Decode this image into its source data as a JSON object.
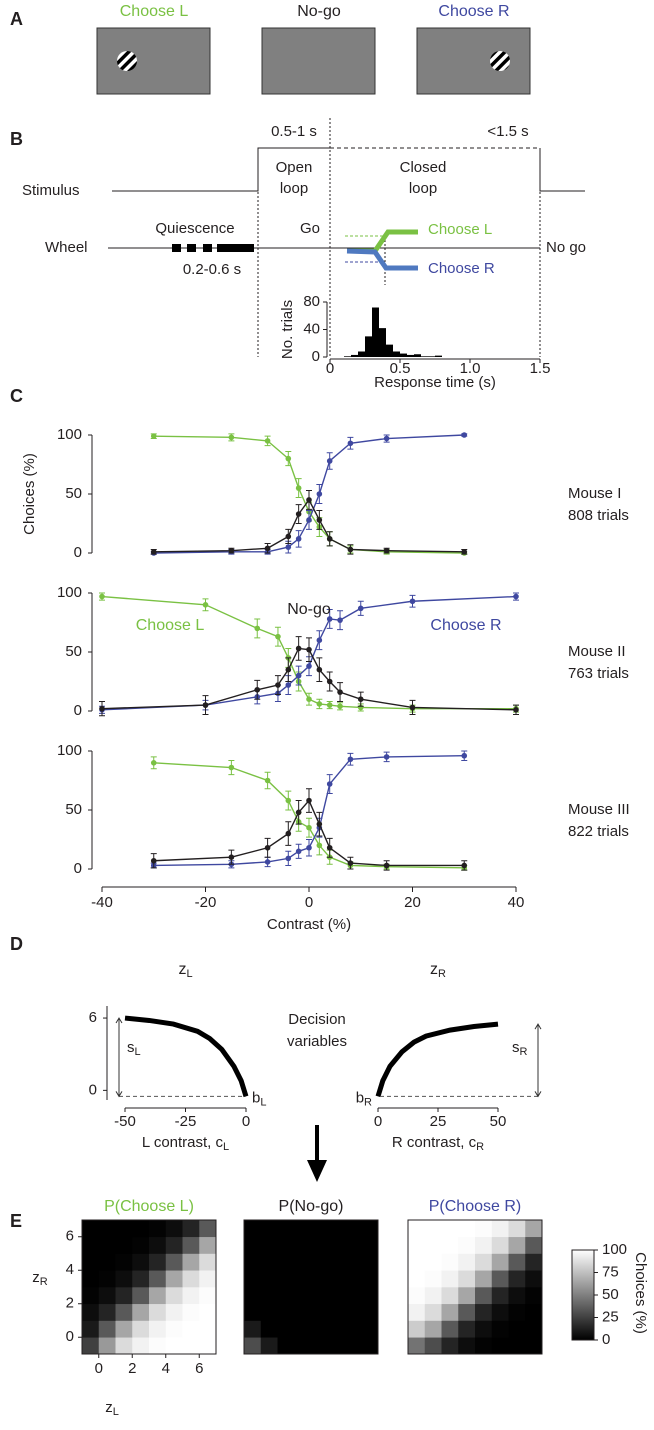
{
  "panel_labels": [
    "A",
    "B",
    "C",
    "D",
    "E"
  ],
  "task": {
    "screens": [
      {
        "title": "Choose L",
        "color": "#7ac143",
        "grating": "left"
      },
      {
        "title": "No-go",
        "color": "#231f20"
      },
      {
        "title": "Choose R",
        "color": "#3f48a0",
        "grating": "right"
      }
    ]
  },
  "trial": {
    "stimulus": "Stimulus",
    "wheel": "Wheel",
    "quiescence": "Quiescence",
    "quiescence_duration": "0.2-0.6 s",
    "open_loop_duration": "0.5-1 s",
    "closed_loop_duration": "<1.5 s",
    "open_loop": [
      "Open",
      "loop"
    ],
    "closed_loop": [
      "Closed",
      "loop"
    ],
    "go": "Go",
    "choose_l": "Choose L",
    "choose_r": "Choose R",
    "no_go": "No go"
  },
  "decision_variables": [
    "Decision",
    "variables"
  ],
  "colorbar": {
    "label": "Choices (%)",
    "lim": [
      0,
      100
    ],
    "ticks": [
      0,
      25,
      50,
      75,
      100
    ]
  },
  "chart_data": [
    {
      "type": "histogram",
      "bins": [
        0.1,
        0.15,
        0.2,
        0.25,
        0.3,
        0.35,
        0.4,
        0.45,
        0.5,
        0.55,
        0.6,
        0.65,
        0.7,
        0.75,
        0.8,
        0.85
      ],
      "counts": [
        1,
        3,
        8,
        30,
        72,
        42,
        18,
        8,
        5,
        3,
        4,
        1,
        1,
        2,
        0
      ],
      "color": "#000000",
      "xlim": [
        0,
        1.5
      ],
      "xticks": [
        0,
        0.5,
        {
          "value": 1,
          "label": "1.0"
        },
        1.5
      ],
      "ylim": [
        0,
        80
      ],
      "yticks": [
        0,
        40,
        80
      ],
      "xlabel": "Response time (s)",
      "ylabel": "No. trials"
    },
    {
      "type": "line",
      "x": [
        -30,
        -15,
        -8,
        -4,
        -2,
        0,
        2,
        4,
        8,
        15,
        30
      ],
      "xlim": [
        -40,
        40
      ],
      "ylim": [
        0,
        100
      ],
      "yticks": [
        0,
        50,
        100
      ],
      "ylabel": "Choices (%)",
      "annotation": [
        "Mouse I",
        "808 trials"
      ],
      "series": [
        {
          "color": "#7ac143",
          "values": [
            99,
            98,
            95,
            80,
            55,
            35,
            22,
            12,
            3,
            1,
            0
          ],
          "errors": [
            2,
            3,
            4,
            6,
            8,
            8,
            8,
            6,
            3,
            2,
            1
          ]
        },
        {
          "color": "#3f48a0",
          "values": [
            0,
            1,
            1,
            5,
            12,
            28,
            50,
            78,
            93,
            97,
            100
          ],
          "errors": [
            1,
            2,
            2,
            5,
            7,
            8,
            8,
            7,
            5,
            3,
            1
          ]
        },
        {
          "color": "#231f20",
          "values": [
            1,
            2,
            4,
            14,
            33,
            45,
            28,
            12,
            3,
            2,
            1
          ],
          "errors": [
            2,
            2,
            4,
            6,
            8,
            8,
            8,
            6,
            4,
            2,
            2
          ]
        }
      ]
    },
    {
      "type": "line",
      "x": [
        -40,
        -20,
        -10,
        -6,
        -4,
        -2,
        0,
        2,
        4,
        6,
        10,
        20,
        40
      ],
      "xlim": [
        -40,
        40
      ],
      "ylim": [
        0,
        100
      ],
      "yticks": [
        0,
        50,
        100
      ],
      "annotation": [
        "Mouse II",
        "763 trials"
      ],
      "series": [
        {
          "name": "Choose L",
          "color": "#7ac143",
          "values": [
            97,
            90,
            70,
            63,
            45,
            25,
            10,
            6,
            5,
            4,
            3,
            2,
            2
          ],
          "errors": [
            3,
            5,
            8,
            8,
            8,
            8,
            5,
            4,
            3,
            3,
            3,
            3,
            3
          ]
        },
        {
          "name": "Choose R",
          "color": "#3f48a0",
          "values": [
            1,
            5,
            12,
            15,
            22,
            30,
            38,
            60,
            78,
            77,
            87,
            93,
            97
          ],
          "errors": [
            3,
            4,
            6,
            7,
            8,
            8,
            8,
            8,
            8,
            8,
            6,
            5,
            3
          ]
        },
        {
          "name": "No-go",
          "color": "#231f20",
          "values": [
            2,
            5,
            18,
            22,
            35,
            53,
            52,
            35,
            25,
            16,
            10,
            3,
            1
          ],
          "errors": [
            6,
            8,
            8,
            8,
            10,
            10,
            10,
            10,
            8,
            8,
            6,
            6,
            4
          ]
        }
      ]
    },
    {
      "type": "line",
      "x": [
        -30,
        -15,
        -8,
        -4,
        -2,
        0,
        2,
        4,
        8,
        15,
        30
      ],
      "xlim": [
        -40,
        40
      ],
      "ylim": [
        0,
        100
      ],
      "yticks": [
        0,
        50,
        100
      ],
      "xticks": [
        -40,
        -20,
        0,
        20,
        40
      ],
      "xlabel": "Contrast (%)",
      "annotation": [
        "Mouse III",
        "822 trials"
      ],
      "series": [
        {
          "color": "#7ac143",
          "values": [
            90,
            86,
            75,
            58,
            40,
            35,
            20,
            10,
            3,
            2,
            1
          ],
          "errors": [
            5,
            6,
            7,
            8,
            8,
            8,
            8,
            6,
            3,
            2,
            2
          ]
        },
        {
          "color": "#3f48a0",
          "values": [
            3,
            4,
            6,
            9,
            15,
            18,
            35,
            72,
            93,
            95,
            96
          ],
          "errors": [
            2,
            3,
            4,
            6,
            6,
            7,
            8,
            8,
            5,
            4,
            4
          ]
        },
        {
          "color": "#231f20",
          "values": [
            7,
            10,
            18,
            30,
            48,
            58,
            38,
            18,
            5,
            3,
            3
          ],
          "errors": [
            6,
            6,
            8,
            10,
            10,
            10,
            10,
            8,
            5,
            4,
            4
          ]
        }
      ]
    },
    {
      "type": "curve",
      "title": [
        "z",
        "L"
      ],
      "x": [
        -50,
        -40,
        -30,
        -20,
        -15,
        -10,
        -5,
        -2,
        0
      ],
      "values": [
        6.0,
        5.8,
        5.5,
        4.9,
        4.3,
        3.4,
        2.0,
        0.8,
        -0.5
      ],
      "color": "#000000",
      "xlim": [
        -50,
        0
      ],
      "xticks": [
        -50,
        -25,
        0
      ],
      "ylim": [
        -0.8,
        7
      ],
      "yticks": [
        0,
        6
      ],
      "xlabel": [
        "L contrast, c",
        "L"
      ],
      "scale_label": [
        "s",
        "L"
      ],
      "offset_label": [
        "b",
        "L"
      ]
    },
    {
      "type": "curve",
      "title": [
        "z",
        "R"
      ],
      "x": [
        0,
        2,
        5,
        10,
        15,
        20,
        30,
        40,
        50
      ],
      "values": [
        -0.5,
        0.8,
        2.0,
        3.2,
        4.0,
        4.5,
        5.0,
        5.3,
        5.5
      ],
      "color": "#000000",
      "xlim": [
        0,
        50
      ],
      "xticks": [
        0,
        25,
        50
      ],
      "ylim": [
        -0.8,
        7
      ],
      "xlabel": [
        "R contrast, c",
        "R"
      ],
      "scale_label": [
        "s",
        "R"
      ],
      "offset_label": [
        "b",
        "R"
      ]
    },
    {
      "type": "heatmap",
      "title": "P(Choose L)",
      "title_color": "#7ac143",
      "x": [
        -0.5,
        0.5,
        1.5,
        2.5,
        3.5,
        4.5,
        5.5,
        6.5
      ],
      "y": [
        -0.5,
        0.5,
        1.5,
        2.5,
        3.5,
        4.5,
        5.5,
        6.5
      ],
      "xlim": [
        -1,
        7
      ],
      "ylim": [
        -1,
        7
      ],
      "xticks": [
        0,
        2,
        4,
        6
      ],
      "yticks": [
        0,
        2,
        4,
        6
      ],
      "xlabel": [
        "z",
        "L"
      ],
      "ylabel": [
        "z",
        "R"
      ],
      "z": [
        [
          25,
          60,
          86,
          95,
          99,
          100,
          100,
          100
        ],
        [
          10,
          35,
          65,
          86,
          95,
          99,
          100,
          100
        ],
        [
          5,
          14,
          35,
          65,
          86,
          95,
          99,
          100
        ],
        [
          1,
          5,
          14,
          35,
          65,
          86,
          95,
          99
        ],
        [
          0,
          1,
          5,
          14,
          35,
          65,
          86,
          95
        ],
        [
          0,
          0,
          1,
          5,
          14,
          35,
          65,
          86
        ],
        [
          0,
          0,
          0,
          1,
          5,
          14,
          35,
          65
        ],
        [
          0,
          0,
          0,
          0,
          1,
          5,
          14,
          35
        ]
      ]
    },
    {
      "type": "heatmap",
      "title": "P(No-go)",
      "title_color": "#231f20",
      "x": [
        -0.5,
        0.5,
        1.5,
        2.5,
        3.5,
        4.5,
        5.5,
        6.5
      ],
      "y": [
        -0.5,
        0.5,
        1.5,
        2.5,
        3.5,
        4.5,
        5.5,
        6.5
      ],
      "xlim": [
        -1,
        7
      ],
      "ylim": [
        -1,
        7
      ],
      "z": [
        [
          30,
          10,
          0,
          0,
          0,
          0,
          0,
          0
        ],
        [
          10,
          0,
          0,
          0,
          0,
          0,
          0,
          0
        ],
        [
          0,
          0,
          0,
          0,
          0,
          0,
          0,
          0
        ],
        [
          0,
          0,
          0,
          0,
          0,
          0,
          0,
          0
        ],
        [
          0,
          0,
          0,
          0,
          0,
          0,
          0,
          0
        ],
        [
          0,
          0,
          0,
          0,
          0,
          0,
          0,
          0
        ],
        [
          0,
          0,
          0,
          0,
          0,
          0,
          0,
          0
        ],
        [
          0,
          0,
          0,
          0,
          0,
          0,
          0,
          0
        ]
      ]
    },
    {
      "type": "heatmap",
      "title": "P(Choose R)",
      "title_color": "#3f48a0",
      "x": [
        -0.5,
        0.5,
        1.5,
        2.5,
        3.5,
        4.5,
        5.5,
        6.5
      ],
      "y": [
        -0.5,
        0.5,
        1.5,
        2.5,
        3.5,
        4.5,
        5.5,
        6.5
      ],
      "xlim": [
        -1,
        7
      ],
      "ylim": [
        -1,
        7
      ],
      "z": [
        [
          45,
          30,
          14,
          5,
          1,
          0,
          0,
          0
        ],
        [
          80,
          65,
          35,
          14,
          5,
          1,
          0,
          0
        ],
        [
          95,
          86,
          65,
          35,
          14,
          5,
          1,
          0
        ],
        [
          99,
          95,
          86,
          65,
          35,
          14,
          5,
          1
        ],
        [
          100,
          99,
          95,
          86,
          65,
          35,
          14,
          5
        ],
        [
          100,
          100,
          99,
          95,
          86,
          65,
          35,
          14
        ],
        [
          100,
          100,
          100,
          99,
          95,
          86,
          65,
          35
        ],
        [
          100,
          100,
          100,
          100,
          99,
          95,
          86,
          65
        ]
      ]
    }
  ]
}
